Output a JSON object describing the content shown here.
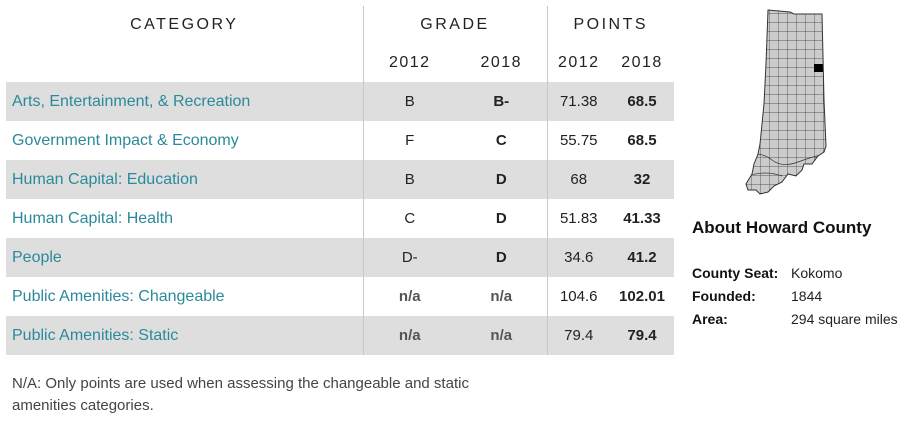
{
  "table": {
    "headers": {
      "category": "CATEGORY",
      "grade": "GRADE",
      "points": "POINTS",
      "grade_2012": "2012",
      "grade_2018": "2018",
      "points_2012": "2012",
      "points_2018": "2018"
    },
    "rows": [
      {
        "category": "Arts, Entertainment, & Recreation",
        "grade_2012": "B",
        "grade_2018": "B-",
        "points_2012": "71.38",
        "points_2018": "68.5"
      },
      {
        "category": "Government Impact & Economy",
        "grade_2012": "F",
        "grade_2018": "C",
        "points_2012": "55.75",
        "points_2018": "68.5"
      },
      {
        "category": "Human Capital: Education",
        "grade_2012": "B",
        "grade_2018": "D",
        "points_2012": "68",
        "points_2018": "32"
      },
      {
        "category": "Human Capital: Health",
        "grade_2012": "C",
        "grade_2018": "D",
        "points_2012": "51.83",
        "points_2018": "41.33"
      },
      {
        "category": "People",
        "grade_2012": "D-",
        "grade_2018": "D",
        "points_2012": "34.6",
        "points_2018": "41.2"
      },
      {
        "category": "Public Amenities: Changeable",
        "grade_2012": "n/a",
        "grade_2018": "n/a",
        "points_2012": "104.6",
        "points_2018": "102.01"
      },
      {
        "category": "Public Amenities: Static",
        "grade_2012": "n/a",
        "grade_2018": "n/a",
        "points_2012": "79.4",
        "points_2018": "79.4"
      }
    ]
  },
  "note": "N/A: Only points are used when assessing the changeable and static amenities categories.",
  "about": {
    "title": "About Howard County",
    "facts": [
      {
        "label": "County Seat:",
        "value": "Kokomo"
      },
      {
        "label": "Founded:",
        "value": "1844"
      },
      {
        "label": "Area:",
        "value": "294 square miles"
      }
    ]
  },
  "map": {
    "icon": "indiana-county-map-icon",
    "fill_color": "#cccccc",
    "highlight_color": "#000000",
    "border_color": "#333333"
  },
  "colors": {
    "category_text": "#2a8a9b",
    "shaded_row": "#dedede"
  }
}
